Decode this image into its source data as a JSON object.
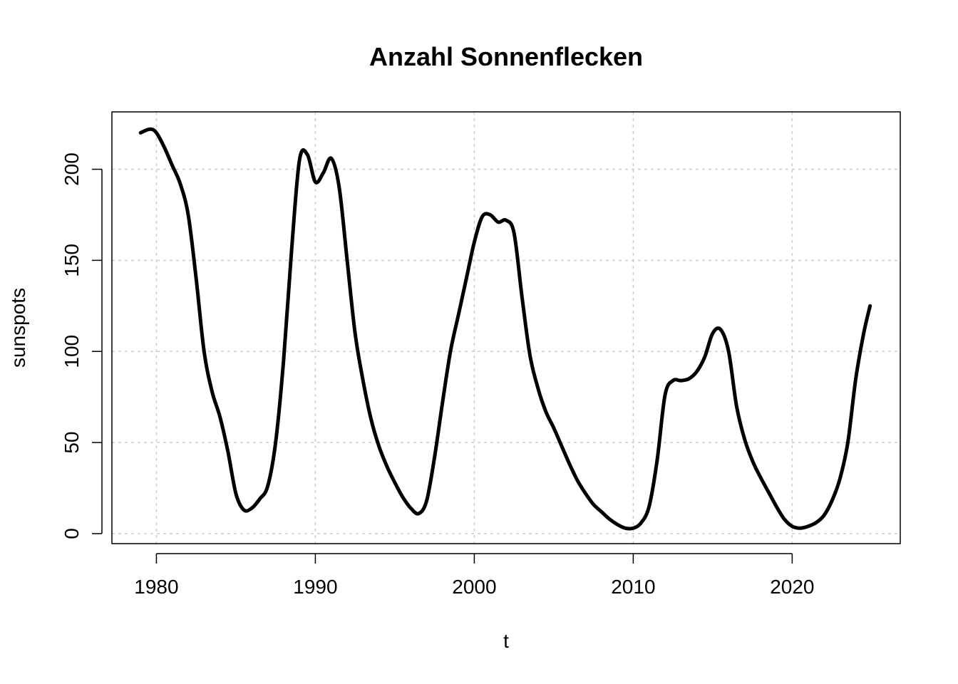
{
  "chart_data": {
    "type": "line",
    "title": "Anzahl Sonnenflecken",
    "xlabel": "t",
    "ylabel": "sunspots",
    "xlim": [
      1977.2,
      2026.8
    ],
    "ylim": [
      -5.5,
      231.5
    ],
    "x_ticks": [
      1980,
      1990,
      2000,
      2010,
      2020
    ],
    "y_ticks": [
      0,
      50,
      100,
      150,
      200
    ],
    "grid": true,
    "series": [
      {
        "x": [
          1979.0,
          1979.6,
          1980.0,
          1980.5,
          1981.0,
          1981.5,
          1982.0,
          1982.5,
          1983.0,
          1983.5,
          1984.0,
          1984.5,
          1985.0,
          1985.5,
          1986.0,
          1986.5,
          1987.0,
          1987.5,
          1988.0,
          1988.5,
          1989.0,
          1989.5,
          1990.0,
          1990.5,
          1991.0,
          1991.5,
          1992.0,
          1992.5,
          1993.0,
          1993.5,
          1994.0,
          1994.5,
          1995.0,
          1995.5,
          1996.0,
          1996.5,
          1997.0,
          1997.5,
          1998.0,
          1998.5,
          1999.0,
          1999.5,
          2000.0,
          2000.5,
          2001.0,
          2001.5,
          2002.0,
          2002.5,
          2003.0,
          2003.5,
          2004.0,
          2004.5,
          2005.0,
          2005.5,
          2006.0,
          2006.5,
          2007.0,
          2007.5,
          2008.0,
          2008.5,
          2009.0,
          2009.5,
          2010.0,
          2010.5,
          2011.0,
          2011.5,
          2012.0,
          2012.5,
          2013.0,
          2013.5,
          2014.0,
          2014.5,
          2015.0,
          2015.5,
          2016.0,
          2016.5,
          2017.0,
          2017.5,
          2018.0,
          2018.5,
          2019.0,
          2019.5,
          2020.0,
          2020.5,
          2021.0,
          2021.5,
          2022.0,
          2022.5,
          2023.0,
          2023.5,
          2024.0,
          2024.5,
          2024.9
        ],
        "y": [
          220,
          222,
          220,
          212,
          202,
          192,
          175,
          140,
          100,
          78,
          64,
          45,
          22,
          13,
          14,
          19,
          26,
          50,
          95,
          155,
          205,
          208,
          193,
          198,
          206,
          190,
          150,
          110,
          84,
          63,
          48,
          37,
          28,
          20,
          14,
          11,
          18,
          42,
          72,
          100,
          120,
          140,
          160,
          174,
          175,
          171,
          172,
          165,
          130,
          98,
          80,
          67,
          58,
          48,
          38,
          29,
          22,
          16,
          12,
          8,
          5,
          3,
          3,
          6,
          15,
          40,
          76,
          84,
          84,
          85,
          89,
          97,
          110,
          112,
          100,
          70,
          52,
          40,
          31,
          23,
          15,
          8,
          4,
          3,
          4,
          6,
          10,
          18,
          30,
          50,
          85,
          110,
          125
        ]
      }
    ]
  }
}
